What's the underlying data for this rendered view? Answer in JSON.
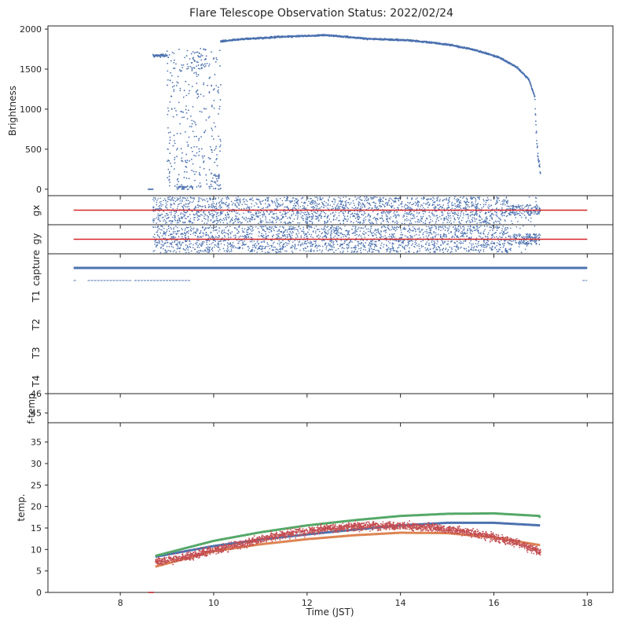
{
  "title": "Flare Telescope Observation Status: 2022/02/24",
  "xlabel": "Time (JST)",
  "colors": {
    "blue": "#4c72b0",
    "orange": "#dd8452",
    "green": "#55a868",
    "red": "#c44e52",
    "line_red": "#d62728",
    "axis": "#262626"
  },
  "chart_data": [
    {
      "type": "scatter",
      "name": "brightness",
      "ylabel": "Brightness",
      "xlim": [
        6.45,
        18.55
      ],
      "ylim": [
        -80,
        2040
      ],
      "yticks": [
        "0",
        "500",
        "1000",
        "1500",
        "2000"
      ],
      "ytick_values": [
        0,
        500,
        1000,
        1500,
        2000
      ],
      "segments": [
        {
          "x_range": [
            8.6,
            8.7
          ],
          "y": 0
        },
        {
          "x_range": [
            8.7,
            9.0
          ],
          "y": 1670
        },
        {
          "x_range": [
            10.15,
            11.5
          ],
          "y": 1870
        },
        {
          "x_range": [
            11.5,
            13.5
          ],
          "y": 1920
        },
        {
          "x_range": [
            13.5,
            15.0
          ],
          "y": 1850
        },
        {
          "x_range": [
            15.0,
            16.0
          ],
          "y": 1700
        },
        {
          "x_range": [
            16.0,
            16.7
          ],
          "y": 1500
        },
        {
          "x_range": [
            16.7,
            16.9
          ],
          "y": 1150
        },
        {
          "x_range": [
            16.9,
            17.0
          ],
          "y": 300
        }
      ]
    },
    {
      "type": "scatter",
      "name": "gx",
      "ylabel": "gx",
      "x_range": [
        8.7,
        17.0
      ],
      "reference_line": {
        "x": [
          7.0,
          18.0
        ]
      }
    },
    {
      "type": "scatter",
      "name": "gy",
      "ylabel": "gy",
      "x_range": [
        8.7,
        17.0
      ],
      "reference_line": {
        "x": [
          7.0,
          18.0
        ]
      }
    },
    {
      "type": "scatter",
      "name": "capture",
      "ylabels": [
        "capture",
        "T1",
        "T2",
        "T3",
        "T4"
      ],
      "capture_line": {
        "x": [
          7.0,
          18.0
        ]
      },
      "t1_segments": [
        [
          7.0,
          7.05
        ],
        [
          7.3,
          8.25
        ],
        [
          8.3,
          9.5
        ],
        [
          17.9,
          18.0
        ]
      ]
    },
    {
      "type": "line",
      "name": "f-temp",
      "ylabel": "f-temp",
      "ylim": [
        44.5,
        46
      ],
      "yticks": [
        "45",
        "46"
      ],
      "ytick_values": [
        45,
        46
      ]
    },
    {
      "type": "line",
      "name": "temp",
      "ylabel": "temp.",
      "xlim": [
        6.45,
        18.55
      ],
      "ylim": [
        0,
        39.5
      ],
      "yticks": [
        "0",
        "5",
        "10",
        "15",
        "20",
        "25",
        "30",
        "35"
      ],
      "ytick_values": [
        0,
        5,
        10,
        15,
        20,
        25,
        30,
        35
      ],
      "xticks": [
        "8",
        "10",
        "12",
        "14",
        "16",
        "18"
      ],
      "xtick_values": [
        8,
        10,
        12,
        14,
        16,
        18
      ],
      "series": [
        {
          "x": [
            8.75,
            10,
            11,
            12,
            13,
            14,
            15,
            16,
            17
          ],
          "y": [
            8.3,
            10.8,
            12.3,
            13.5,
            14.6,
            15.6,
            16.2,
            16.2,
            15.6
          ]
        },
        {
          "x": [
            8.75,
            10,
            11,
            12,
            13,
            14,
            15,
            16,
            17
          ],
          "y": [
            6.0,
            9.6,
            11.2,
            12.4,
            13.3,
            13.9,
            13.8,
            12.8,
            11.0
          ]
        },
        {
          "x": [
            8.75,
            10,
            11,
            12,
            13,
            14,
            15,
            16,
            16.98,
            17
          ],
          "y": [
            8.5,
            12.0,
            14.0,
            15.6,
            16.8,
            17.8,
            18.3,
            18.4,
            17.8,
            17.0
          ]
        },
        {
          "x": [
            8.75,
            9.5,
            10.5,
            11.5,
            12.5,
            13.5,
            14.5,
            15.5,
            16.5,
            17
          ],
          "y": [
            7.0,
            8.5,
            11.0,
            13.5,
            15.0,
            15.5,
            15.3,
            14.0,
            11.5,
            9.5
          ]
        }
      ]
    }
  ]
}
